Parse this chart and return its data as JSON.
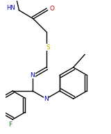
{
  "bg_color": "#ffffff",
  "atom_colors": {
    "N": "#0000bb",
    "O": "#cc0000",
    "S": "#bbaa00",
    "F": "#007700",
    "C": "#000000"
  },
  "fig_width": 1.6,
  "fig_height": 1.93,
  "dpi": 100
}
